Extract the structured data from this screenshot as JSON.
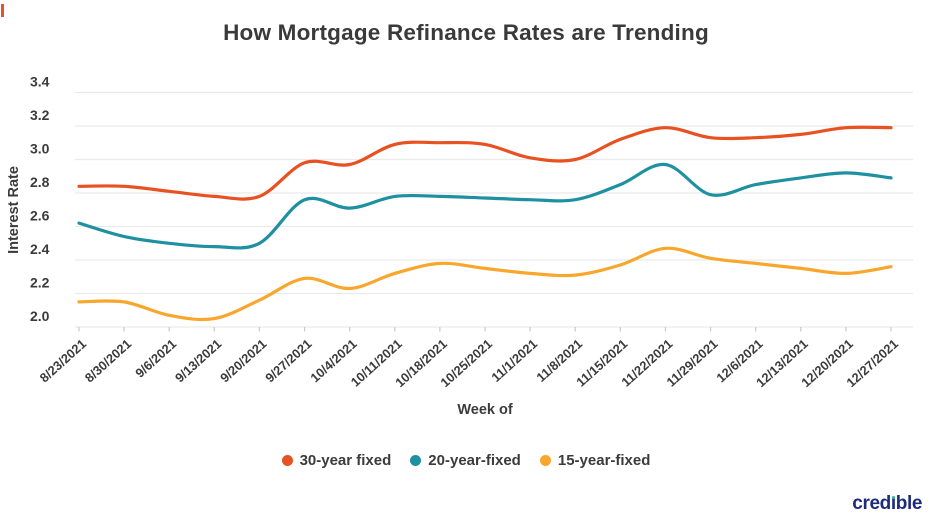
{
  "page": {
    "background": "#FFFFFF"
  },
  "artifact_mark": {
    "color": "#E8512D"
  },
  "chart_data": {
    "type": "line",
    "title": "How Mortgage Refinance Rates are Trending",
    "xlabel": "Week of",
    "ylabel": "Interest Rate",
    "ylim": [
      2.0,
      3.4
    ],
    "yticks": [
      3.4,
      3.2,
      3.0,
      2.8,
      2.6,
      2.4,
      2.2,
      2.0
    ],
    "grid": true,
    "legend_position": "bottom",
    "categories": [
      "8/23/2021",
      "8/30/2021",
      "9/6/2021",
      "9/13/2021",
      "9/20/2021",
      "9/27/2021",
      "10/4/2021",
      "10/11/2021",
      "10/18/2021",
      "10/25/2021",
      "11/1/2021",
      "11/8/2021",
      "11/15/2021",
      "11/22/2021",
      "11/29/2021",
      "12/6/2021",
      "12/13/2021",
      "12/20/2021",
      "12/27/2021"
    ],
    "series": [
      {
        "name": "30-year fixed",
        "color": "#E85121",
        "values": [
          2.84,
          2.84,
          2.81,
          2.78,
          2.78,
          2.98,
          2.97,
          3.09,
          3.1,
          3.09,
          3.01,
          3.0,
          3.12,
          3.19,
          3.13,
          3.13,
          3.15,
          3.19,
          3.19
        ]
      },
      {
        "name": "20-year-fixed",
        "color": "#1E90A1",
        "values": [
          2.62,
          2.54,
          2.5,
          2.48,
          2.5,
          2.76,
          2.71,
          2.78,
          2.78,
          2.77,
          2.76,
          2.76,
          2.85,
          2.97,
          2.79,
          2.85,
          2.89,
          2.92,
          2.89
        ]
      },
      {
        "name": "15-year-fixed",
        "color": "#F9A72C",
        "values": [
          2.15,
          2.15,
          2.07,
          2.05,
          2.16,
          2.29,
          2.23,
          2.32,
          2.38,
          2.35,
          2.32,
          2.31,
          2.37,
          2.47,
          2.41,
          2.38,
          2.35,
          2.32,
          2.36
        ]
      }
    ],
    "text_color": "#3B3B3B",
    "grid_color": "#EAEAEA",
    "tick_color": "#C9C9C9"
  },
  "branding": {
    "logo_text": "credible",
    "logo_color": "#1D2B7B",
    "logo_dot_color": "#2EB3A0"
  }
}
